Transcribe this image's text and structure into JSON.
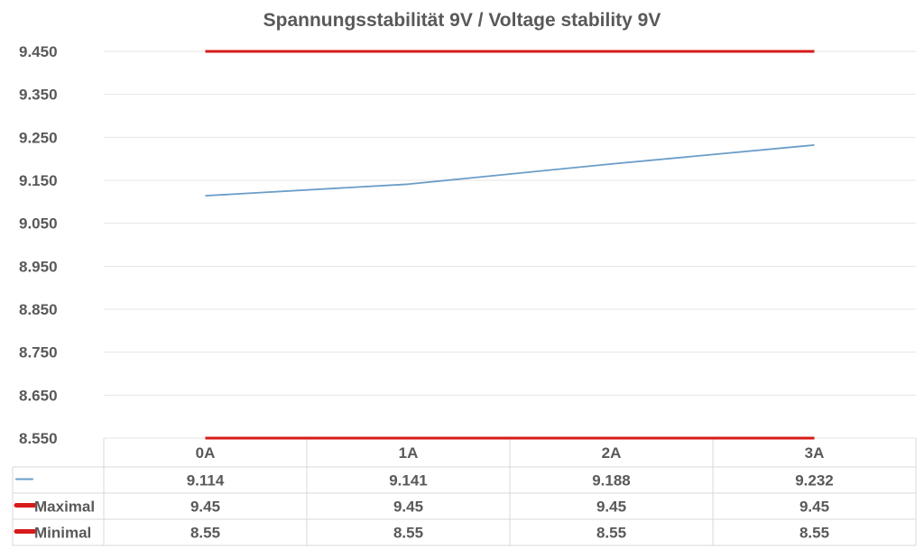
{
  "chart_data": {
    "type": "line",
    "title": "Spannungsstabilität 9V / Voltage stability 9V",
    "xlabel": "",
    "ylabel": "",
    "categories": [
      "0A",
      "1A",
      "2A",
      "3A"
    ],
    "ylim": [
      8.55,
      9.45
    ],
    "yticks": [
      "9.450",
      "9.350",
      "9.250",
      "9.150",
      "9.050",
      "8.950",
      "8.850",
      "8.750",
      "8.650",
      "8.550"
    ],
    "grid": true,
    "legend": "data-table-below",
    "series": [
      {
        "name": "",
        "values": [
          9.114,
          9.141,
          9.188,
          9.232
        ],
        "labels": [
          "9.114",
          "9.141",
          "9.188",
          "9.232"
        ],
        "color": "#6a9dc8"
      },
      {
        "name": "Maximal",
        "values": [
          9.45,
          9.45,
          9.45,
          9.45
        ],
        "labels": [
          "9.45",
          "9.45",
          "9.45",
          "9.45"
        ],
        "color": "#d71a1a"
      },
      {
        "name": "Minimal",
        "values": [
          8.55,
          8.55,
          8.55,
          8.55
        ],
        "labels": [
          "8.55",
          "8.55",
          "8.55",
          "8.55"
        ],
        "color": "#d71a1a"
      }
    ]
  }
}
